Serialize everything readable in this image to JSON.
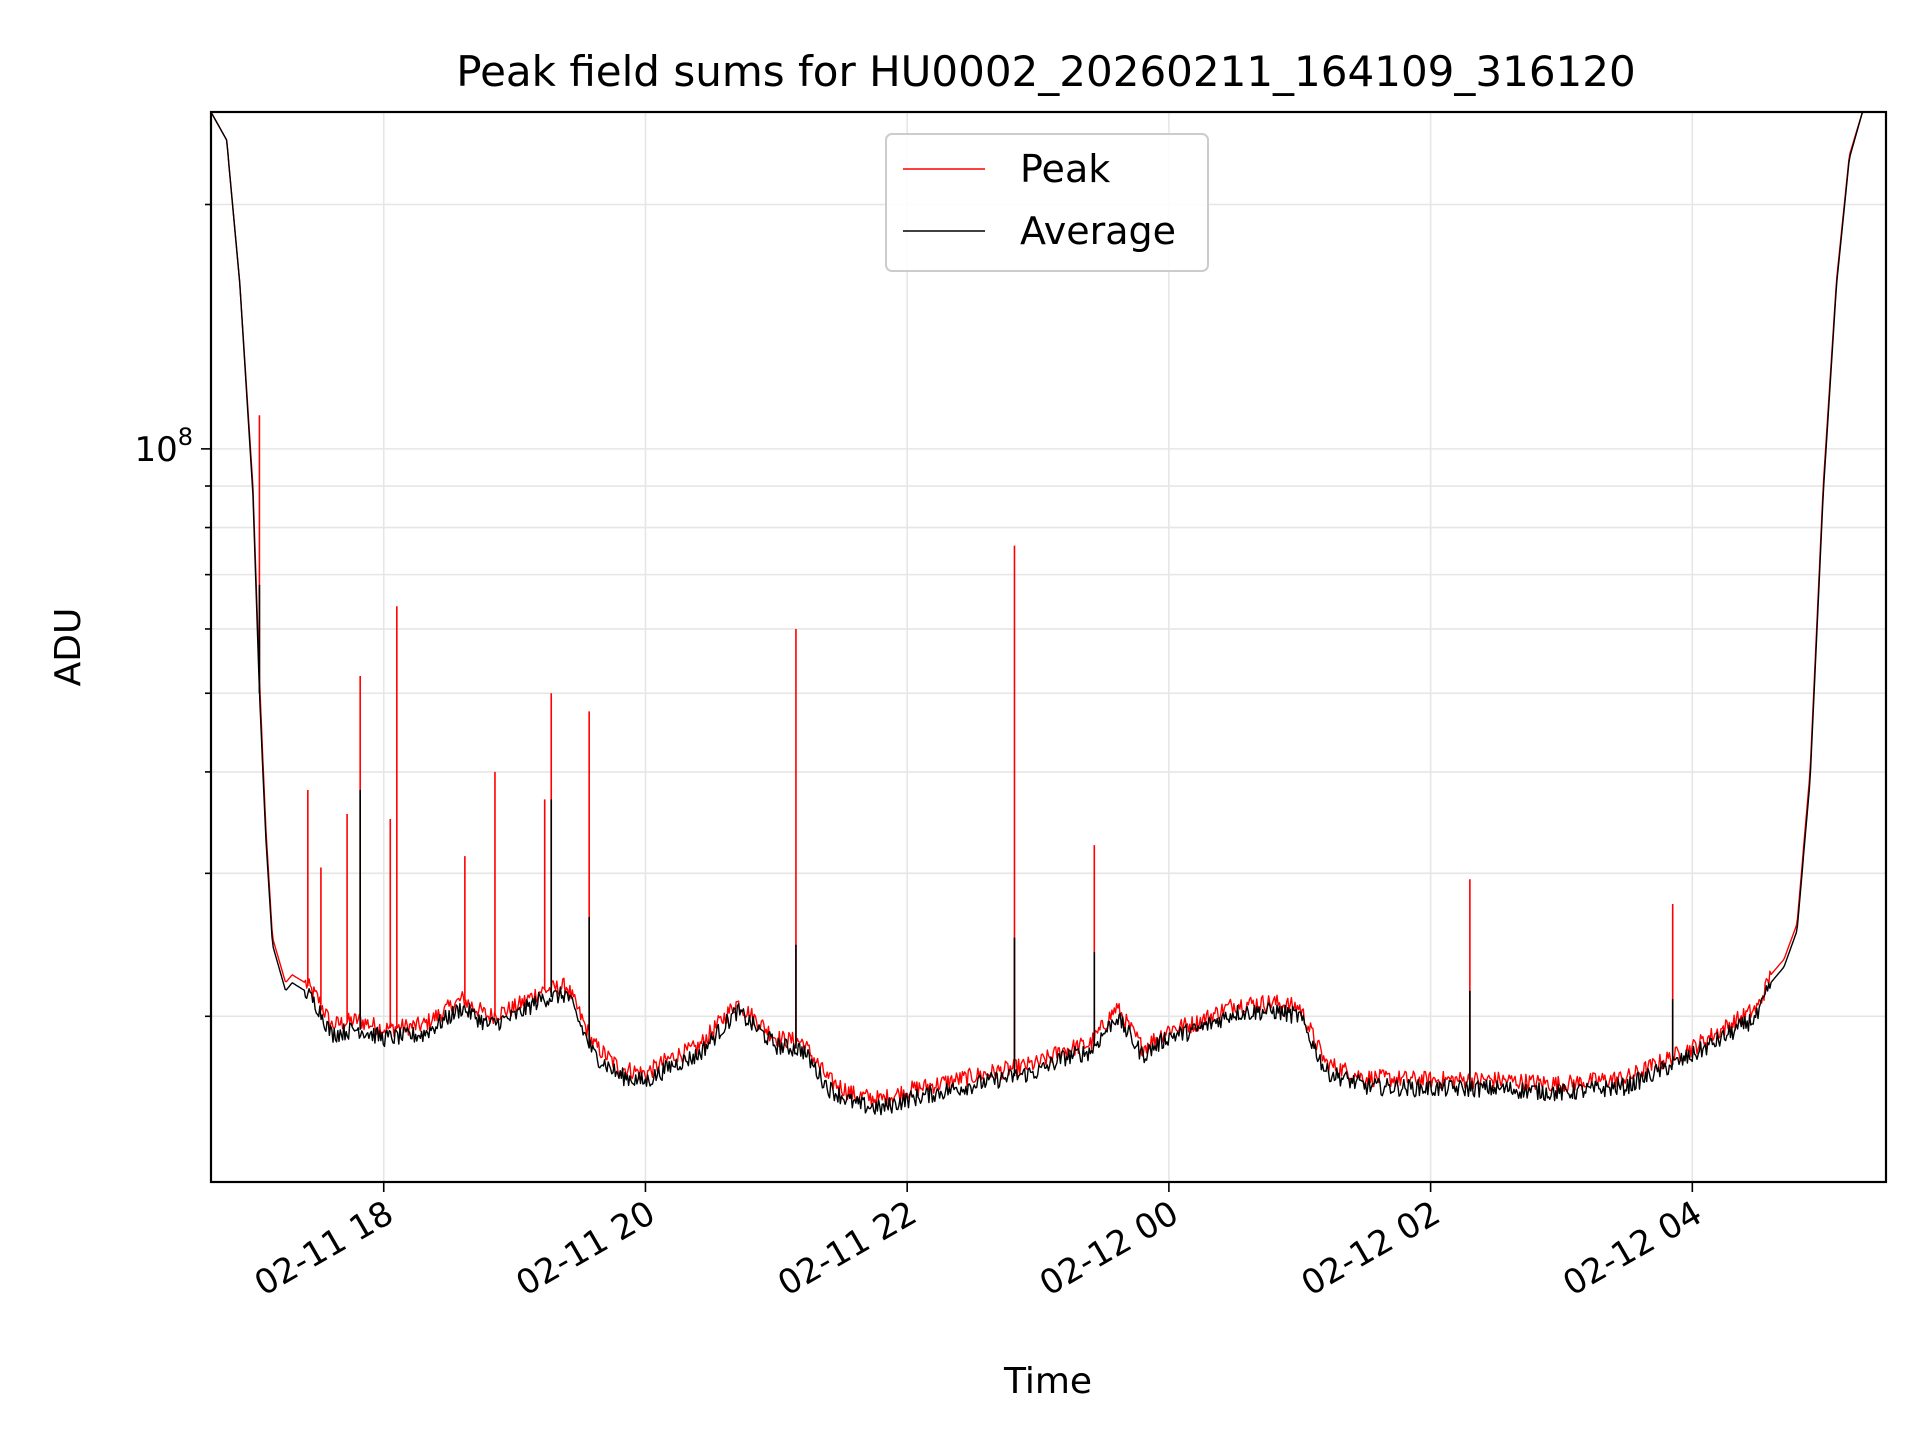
{
  "chart_data": {
    "type": "line",
    "title": "Peak field sums for HU0002_20260211_164109_316120",
    "xlabel": "Time",
    "ylabel": "ADU",
    "y_scale": "log",
    "ylim": [
      12500000,
      260000000
    ],
    "xlim_hours": [
      -1.32,
      11.48
    ],
    "x_origin": "2026-02-11 18:00",
    "grid": true,
    "legend_position": "top-center",
    "x_ticks": [
      {
        "label": "02-11 18",
        "hour": 0
      },
      {
        "label": "02-11 20",
        "hour": 2
      },
      {
        "label": "02-11 22",
        "hour": 4
      },
      {
        "label": "02-12 00",
        "hour": 6
      },
      {
        "label": "02-12 02",
        "hour": 8
      },
      {
        "label": "02-12 04",
        "hour": 10
      }
    ],
    "y_tick_label": {
      "base": "10",
      "exp": "8",
      "value": 100000000
    },
    "y_minor_ticks": [
      20000000,
      30000000,
      40000000,
      50000000,
      60000000,
      70000000,
      80000000,
      90000000,
      200000000
    ],
    "series": [
      {
        "name": "Peak",
        "color": "#ff0000",
        "x_hours": [
          -1.32,
          -1.2,
          -1.1,
          -1.0,
          -0.95,
          -0.9,
          -0.85,
          -0.75,
          -0.7,
          -0.6,
          -0.5,
          -0.4,
          -0.2,
          0.0,
          0.3,
          0.6,
          0.8,
          1.0,
          1.2,
          1.4,
          1.6,
          1.8,
          2.0,
          2.2,
          2.4,
          2.7,
          3.0,
          3.2,
          3.4,
          3.6,
          3.8,
          4.0,
          4.3,
          4.6,
          5.0,
          5.2,
          5.4,
          5.6,
          5.8,
          6.0,
          6.2,
          6.5,
          6.8,
          7.0,
          7.2,
          7.5,
          8.0,
          8.5,
          9.0,
          9.5,
          10.0,
          10.3,
          10.5,
          10.6,
          10.7,
          10.8,
          10.9,
          11.0,
          11.1,
          11.2,
          11.3,
          11.48
        ],
        "values": [
          260000000,
          240000000,
          160000000,
          90000000,
          52000000,
          34000000,
          25000000,
          22000000,
          22500000,
          22000000,
          21000000,
          19500000,
          19800000,
          19300000,
          19500000,
          21000000,
          20000000,
          20500000,
          21500000,
          21800000,
          18500000,
          17300000,
          17000000,
          17800000,
          18300000,
          20800000,
          18800000,
          18600000,
          16700000,
          16000000,
          15800000,
          16200000,
          16600000,
          17000000,
          17500000,
          18200000,
          18500000,
          20500000,
          18300000,
          19300000,
          19600000,
          20700000,
          20800000,
          20500000,
          17500000,
          16800000,
          16700000,
          16700000,
          16500000,
          16800000,
          18300000,
          19600000,
          20500000,
          22500000,
          23500000,
          26000000,
          40000000,
          90000000,
          160000000,
          230000000,
          260000000,
          260000000
        ],
        "spikes": [
          {
            "hour": -0.95,
            "value": 110000000
          },
          {
            "hour": -0.58,
            "value": 38000000
          },
          {
            "hour": -0.48,
            "value": 30500000
          },
          {
            "hour": -0.28,
            "value": 35500000
          },
          {
            "hour": -0.18,
            "value": 52500000
          },
          {
            "hour": 0.05,
            "value": 35000000
          },
          {
            "hour": 0.1,
            "value": 64000000
          },
          {
            "hour": 0.62,
            "value": 31500000
          },
          {
            "hour": 0.85,
            "value": 40000000
          },
          {
            "hour": 1.23,
            "value": 37000000
          },
          {
            "hour": 1.28,
            "value": 50000000
          },
          {
            "hour": 1.57,
            "value": 47500000
          },
          {
            "hour": 3.15,
            "value": 60000000
          },
          {
            "hour": 4.82,
            "value": 76000000
          },
          {
            "hour": 5.43,
            "value": 32500000
          },
          {
            "hour": 8.3,
            "value": 29500000
          },
          {
            "hour": 9.85,
            "value": 27500000
          }
        ]
      },
      {
        "name": "Average",
        "color": "#000000",
        "x_hours": [
          -1.32,
          -1.2,
          -1.1,
          -1.0,
          -0.95,
          -0.9,
          -0.85,
          -0.75,
          -0.7,
          -0.6,
          -0.5,
          -0.4,
          -0.2,
          0.0,
          0.3,
          0.6,
          0.8,
          1.0,
          1.2,
          1.4,
          1.6,
          1.8,
          2.0,
          2.2,
          2.4,
          2.7,
          3.0,
          3.2,
          3.4,
          3.6,
          3.8,
          4.0,
          4.3,
          4.6,
          5.0,
          5.2,
          5.4,
          5.6,
          5.8,
          6.0,
          6.2,
          6.5,
          6.8,
          7.0,
          7.2,
          7.5,
          8.0,
          8.5,
          9.0,
          9.5,
          10.0,
          10.3,
          10.5,
          10.6,
          10.7,
          10.8,
          10.9,
          11.0,
          11.1,
          11.2,
          11.3,
          11.48
        ],
        "values": [
          260000000,
          240000000,
          160000000,
          88000000,
          50000000,
          33000000,
          24500000,
          21500000,
          22000000,
          21500000,
          20500000,
          19000000,
          19300000,
          18800000,
          19000000,
          20500000,
          19500000,
          20000000,
          21000000,
          21300000,
          18000000,
          16900000,
          16600000,
          17400000,
          17900000,
          20300000,
          18400000,
          18200000,
          16300000,
          15600000,
          15400000,
          15800000,
          16200000,
          16600000,
          17100000,
          17800000,
          18100000,
          20000000,
          17900000,
          18900000,
          19200000,
          20200000,
          20300000,
          20000000,
          17100000,
          16400000,
          16300000,
          16300000,
          16100000,
          16400000,
          17900000,
          19100000,
          20000000,
          22000000,
          23000000,
          25500000,
          39000000,
          88000000,
          158000000,
          228000000,
          260000000,
          260000000
        ],
        "spikes": [
          {
            "hour": -0.95,
            "value": 68000000
          },
          {
            "hour": -0.18,
            "value": 38000000
          },
          {
            "hour": 1.28,
            "value": 37000000
          },
          {
            "hour": 1.57,
            "value": 26500000
          },
          {
            "hour": 3.15,
            "value": 24500000
          },
          {
            "hour": 4.82,
            "value": 25000000
          },
          {
            "hour": 5.43,
            "value": 24000000
          },
          {
            "hour": 8.3,
            "value": 21500000
          },
          {
            "hour": 9.85,
            "value": 21000000
          }
        ]
      }
    ]
  }
}
